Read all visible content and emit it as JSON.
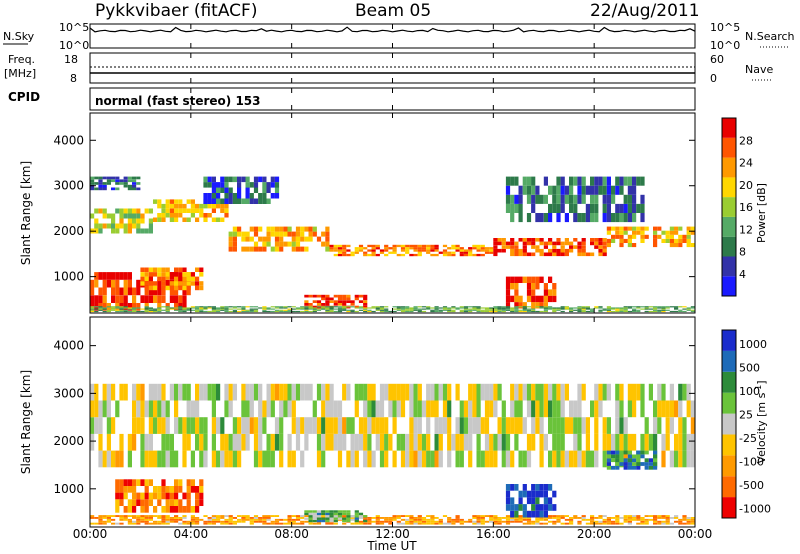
{
  "header": {
    "station": "Pykkvibaer (fitACF)",
    "beam": "Beam 05",
    "date": "22/Aug/2011"
  },
  "noise_panel": {
    "left_label": "N.Sky",
    "right_label": "N.Search",
    "left_ticks": [
      "10^5",
      "10^0"
    ],
    "right_ticks": [
      "10^5",
      "10^0"
    ]
  },
  "freq_panel": {
    "left_label_top": "Freq.",
    "left_label_bottom": "[MHz]",
    "right_label": "Nave",
    "left_ticks": [
      "18",
      "8"
    ],
    "right_ticks": [
      "60",
      "0"
    ]
  },
  "cpid": {
    "label": "CPID",
    "program": "normal (fast stereo) 153"
  },
  "colors": {
    "power": [
      "#1a1aff",
      "#3232a8",
      "#2d7a4a",
      "#55aa66",
      "#9acd32",
      "#ffd700",
      "#ff9900",
      "#ff5500",
      "#e80000"
    ],
    "velocity": [
      "#ee0000",
      "#ff6a00",
      "#ff9a00",
      "#ffc400",
      "#c8c8c8",
      "#6ac33a",
      "#2d8b3a",
      "#1e6bb8",
      "#1a2ccc"
    ]
  },
  "chart_data": [
    {
      "type": "heatmap",
      "title": "Power",
      "ylabel": "Slant Range [km]",
      "yticks": [
        "1000",
        "2000",
        "3000",
        "4000"
      ],
      "ylim": [
        200,
        4600
      ],
      "colorbar_label": "Power [dB]",
      "colorbar_ticks": [
        "4",
        "8",
        "12",
        "16",
        "20",
        "24",
        "28"
      ],
      "colorbar_range": [
        0,
        32
      ],
      "bands": [
        {
          "t0": 0.0,
          "t1": 2.5,
          "r0": 1950,
          "r1": 2500,
          "level": 0.55
        },
        {
          "t0": 2.5,
          "t1": 5.5,
          "r0": 2200,
          "r1": 2700,
          "level": 0.65
        },
        {
          "t0": 5.5,
          "t1": 9.5,
          "r0": 1550,
          "r1": 2100,
          "level": 0.7
        },
        {
          "t0": 9.5,
          "t1": 16.0,
          "r0": 1450,
          "r1": 1700,
          "level": 0.75
        },
        {
          "t0": 16.0,
          "t1": 20.5,
          "r0": 1450,
          "r1": 1850,
          "level": 0.85
        },
        {
          "t0": 20.5,
          "t1": 24.0,
          "r0": 1650,
          "r1": 2100,
          "level": 0.7
        },
        {
          "t0": 0.0,
          "t1": 4.0,
          "r0": 250,
          "r1": 1100,
          "level": 0.9
        },
        {
          "t0": 2.0,
          "t1": 4.5,
          "r0": 700,
          "r1": 1200,
          "level": 0.75
        },
        {
          "t0": 8.5,
          "t1": 11.0,
          "r0": 300,
          "r1": 600,
          "level": 0.9
        },
        {
          "t0": 16.5,
          "t1": 18.5,
          "r0": 300,
          "r1": 1000,
          "level": 0.9
        },
        {
          "t0": 0.0,
          "t1": 24.0,
          "r0": 220,
          "r1": 350,
          "level": 0.4
        },
        {
          "t0": 4.5,
          "t1": 7.5,
          "r0": 2600,
          "r1": 3200,
          "level": 0.2
        },
        {
          "t0": 16.5,
          "t1": 22.0,
          "r0": 2200,
          "r1": 3200,
          "level": 0.25
        },
        {
          "t0": 0.0,
          "t1": 2.0,
          "r0": 2900,
          "r1": 3200,
          "level": 0.2
        }
      ]
    },
    {
      "type": "heatmap",
      "title": "Velocity",
      "ylabel": "Slant Range [km]",
      "yticks": [
        "1000",
        "2000",
        "3000",
        "4000"
      ],
      "ylim": [
        200,
        4600
      ],
      "colorbar_label": "Velocity [m s^-1]",
      "colorbar_ticks": [
        "1000",
        "500",
        "100",
        "25",
        "-25",
        "-100",
        "-500",
        "-1000"
      ],
      "bands": [
        {
          "t0": 0.0,
          "t1": 24.0,
          "r0": 1450,
          "r1": 3200,
          "level": 0.5
        },
        {
          "t0": 1.0,
          "t1": 4.5,
          "r0": 500,
          "r1": 1200,
          "level": 0.22
        },
        {
          "t0": 0.0,
          "t1": 24.0,
          "r0": 250,
          "r1": 450,
          "level": 0.3
        },
        {
          "t0": 16.5,
          "t1": 18.5,
          "r0": 400,
          "r1": 1100,
          "level": 0.9
        },
        {
          "t0": 8.5,
          "t1": 11.0,
          "r0": 300,
          "r1": 550,
          "level": 0.62
        },
        {
          "t0": 20.5,
          "t1": 22.5,
          "r0": 1400,
          "r1": 1800,
          "level": 0.75
        }
      ]
    }
  ],
  "x_axis": {
    "ticks": [
      "00:00",
      "04:00",
      "08:00",
      "12:00",
      "16:00",
      "20:00",
      "00:00"
    ],
    "label": "Time UT",
    "xlim": [
      0,
      24
    ]
  }
}
